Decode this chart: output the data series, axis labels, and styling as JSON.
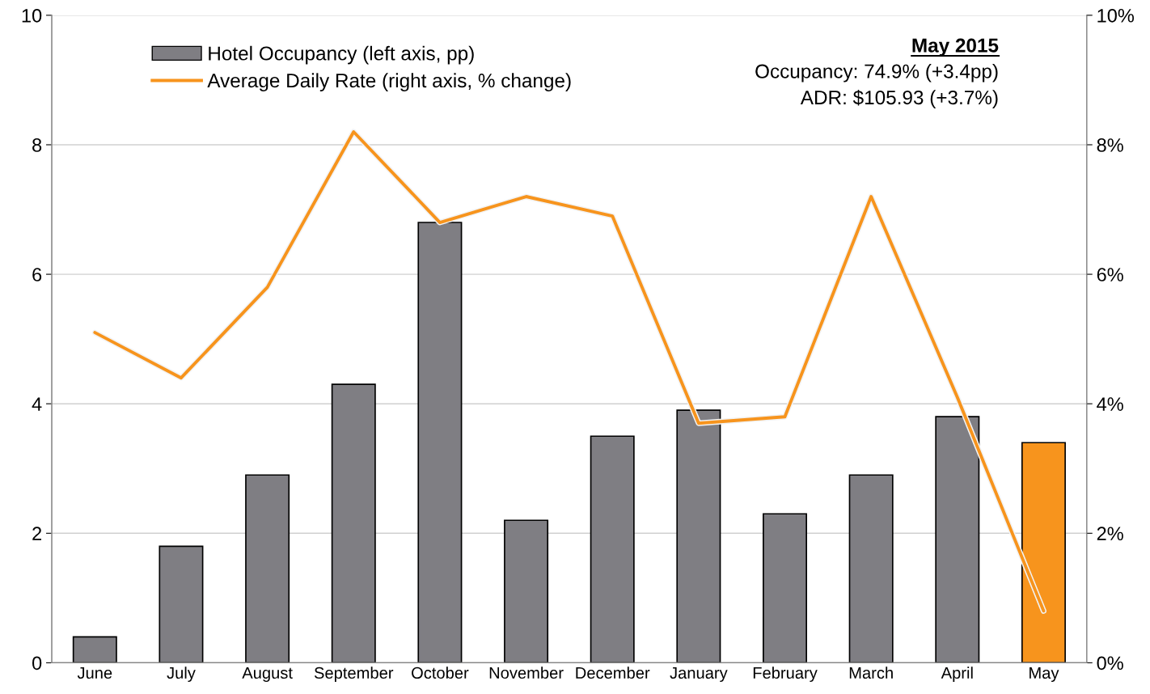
{
  "chart_data": {
    "type": "bar",
    "categories": [
      "June",
      "July",
      "August",
      "September",
      "October",
      "November",
      "December",
      "January",
      "February",
      "March",
      "April",
      "May"
    ],
    "series": [
      {
        "name": "Hotel Occupancy (left axis, pp)",
        "color": "#7f7e83",
        "colors": [
          "#7f7e83",
          "#7f7e83",
          "#7f7e83",
          "#7f7e83",
          "#7f7e83",
          "#7f7e83",
          "#7f7e83",
          "#7f7e83",
          "#7f7e83",
          "#7f7e83",
          "#7f7e83",
          "#f7941d"
        ],
        "values": [
          0.4,
          1.8,
          2.9,
          4.3,
          6.8,
          2.2,
          3.5,
          3.9,
          2.3,
          2.9,
          3.8,
          3.4
        ]
      },
      {
        "name": "Average Daily Rate (right axis, % change)",
        "type": "line",
        "axis": "y2",
        "color": "#f7941d",
        "values": [
          5.1,
          4.4,
          5.8,
          8.2,
          6.8,
          7.2,
          6.9,
          3.7,
          3.8,
          7.2,
          4.1,
          0.8
        ]
      }
    ],
    "ylim": [
      0,
      10
    ],
    "yticks": [
      0,
      2,
      4,
      6,
      8,
      10
    ],
    "y2lim": [
      0,
      10
    ],
    "y2ticks": [
      {
        "value": 0,
        "label": "0%"
      },
      {
        "value": 2,
        "label": "2%"
      },
      {
        "value": 4,
        "label": "4%"
      },
      {
        "value": 6,
        "label": "6%"
      },
      {
        "value": 8,
        "label": "8%"
      },
      {
        "value": 10,
        "label": "10%"
      }
    ],
    "grid": "y",
    "legend": "top left",
    "line_style": "solid",
    "marker": "none",
    "annotations": [
      "May 2015",
      "Occupancy: 74.9% (+3.4pp)",
      "ADR: $105.93 (+3.7%)"
    ]
  }
}
